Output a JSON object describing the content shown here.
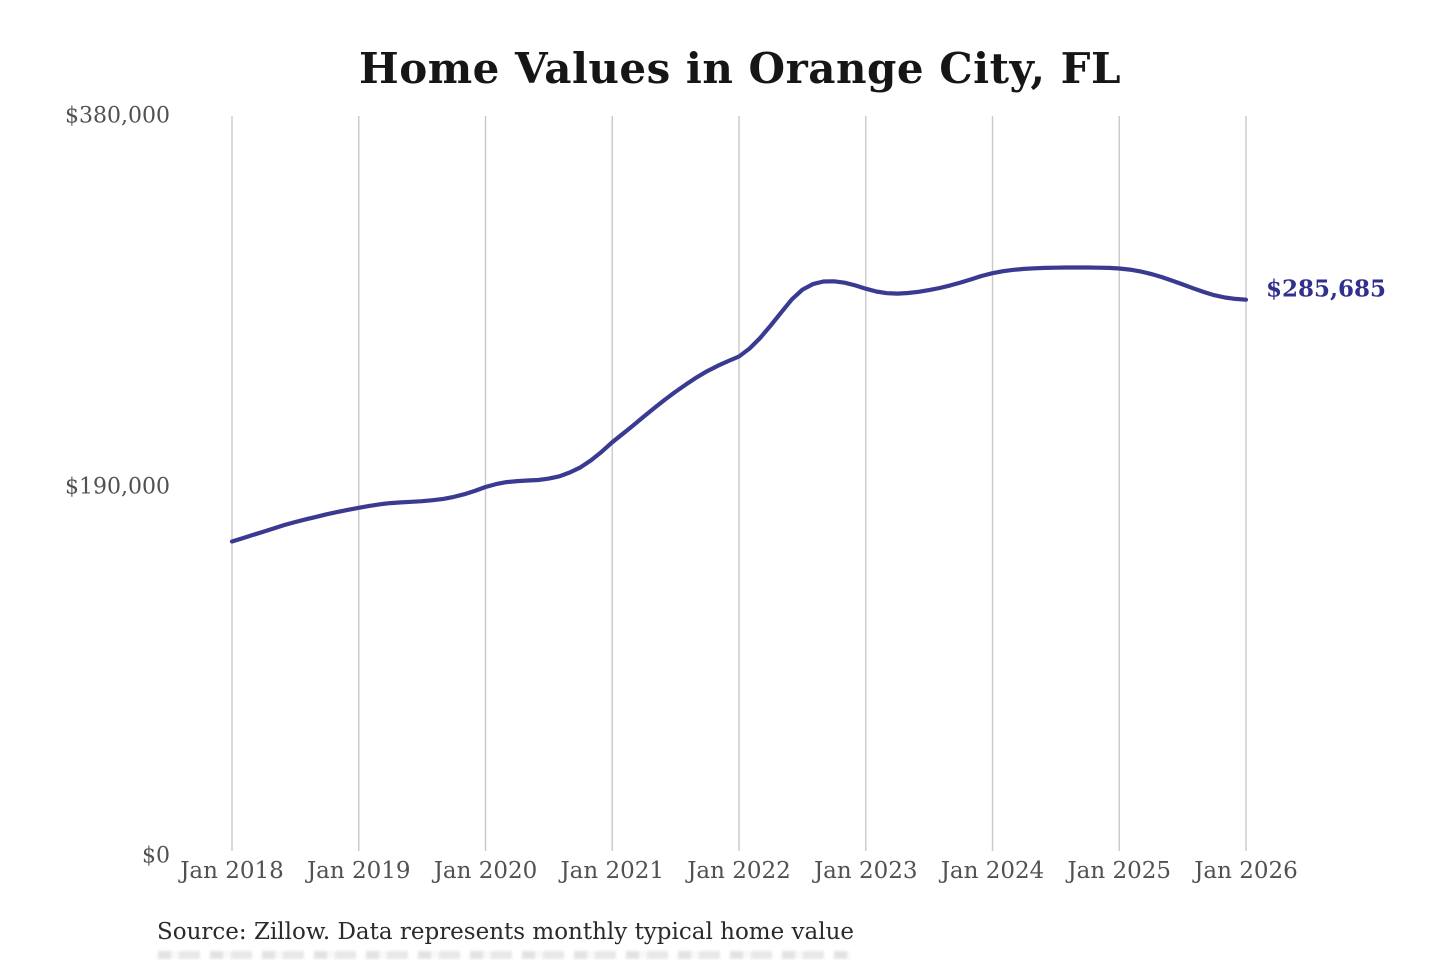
{
  "title": "Home Values in Orange City, FL",
  "source_note": "Source: Zillow. Data represents monthly typical home value",
  "colors": {
    "line": "#3b3a92",
    "value_label": "#32308c",
    "grid": "#c9c9c9",
    "axis_text": "#515151",
    "title_text": "#161616",
    "source_text": "#2a2a2a",
    "background": "#ffffff"
  },
  "chart_data": {
    "type": "line",
    "title": "Home Values in Orange City, FL",
    "xlabel": "",
    "ylabel": "",
    "x_unit": "month",
    "x_start": "Jan 2018",
    "x_end": "Jan 2026",
    "x_tick_labels": [
      "Jan 2018",
      "Jan 2019",
      "Jan 2020",
      "Jan 2021",
      "Jan 2022",
      "Jan 2023",
      "Jan 2024",
      "Jan 2025",
      "Jan 2026"
    ],
    "y_tick_labels": [
      "$0",
      "$190,000",
      "$380,000"
    ],
    "y_ticks": [
      0,
      190000,
      380000
    ],
    "ylim": [
      0,
      380000
    ],
    "grid": "vertical-only",
    "legend": "none",
    "last_value": 285685,
    "last_value_label": "$285,685",
    "series": [
      {
        "name": "Monthly typical home value",
        "values": [
          161500,
          163200,
          164900,
          166600,
          168300,
          170000,
          171500,
          172900,
          174200,
          175500,
          176700,
          177800,
          178800,
          179800,
          180600,
          181200,
          181600,
          181900,
          182200,
          182700,
          183400,
          184400,
          185800,
          187500,
          189500,
          191000,
          192000,
          192500,
          192800,
          193100,
          193800,
          195000,
          197000,
          199600,
          203200,
          207600,
          212500,
          216800,
          221200,
          225700,
          230100,
          234400,
          238400,
          242200,
          245800,
          249000,
          251800,
          254200,
          256500,
          260600,
          266000,
          272400,
          279200,
          285800,
          290800,
          293700,
          295000,
          295100,
          294400,
          293000,
          291300,
          289900,
          289000,
          288800,
          289100,
          289700,
          290600,
          291700,
          293000,
          294500,
          296200,
          297900,
          299300,
          300300,
          301000,
          301500,
          301800,
          302000,
          302100,
          302200,
          302200,
          302200,
          302100,
          302000,
          301700,
          301100,
          300200,
          298900,
          297300,
          295500,
          293500,
          291500,
          289600,
          288000,
          286800,
          286100,
          285685
        ]
      }
    ]
  }
}
